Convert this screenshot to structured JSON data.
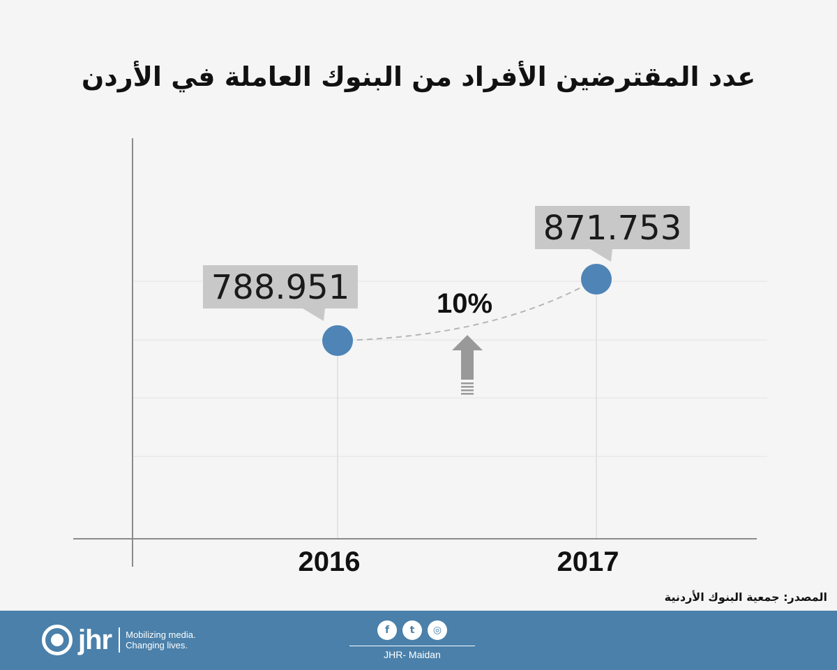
{
  "title": "عدد المقترضين الأفراد من البنوك العاملة في الأردن",
  "source": "المصدر: جمعية البنوك الأردنية",
  "change_label": "10%",
  "chart_data": {
    "type": "line",
    "categories": [
      "2016",
      "2017"
    ],
    "values": [
      788951,
      871753
    ],
    "data_labels": [
      "788.951",
      "871.753"
    ],
    "title": "عدد المقترضين الأفراد من البنوك العاملة في الأردن",
    "annotations": [
      "10%"
    ],
    "grid": true,
    "colors": {
      "point": "#4e84b6",
      "callout": "#c8c8c8",
      "arrow": "#999999"
    }
  },
  "footer": {
    "logo_name": "jhr",
    "tagline_1": "Mobilizing media.",
    "tagline_2": "Changing lives.",
    "social": [
      {
        "icon": "facebook-icon",
        "glyph": "f"
      },
      {
        "icon": "twitter-icon",
        "glyph": "t"
      },
      {
        "icon": "instagram-icon",
        "glyph": "◎"
      }
    ],
    "brand": "JHR- Maidan",
    "background": "#4a80aa"
  }
}
